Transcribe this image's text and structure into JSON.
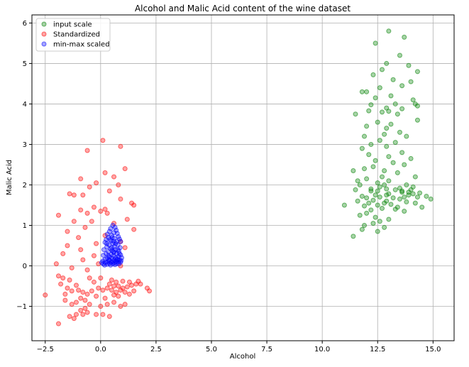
{
  "chart_data": {
    "type": "scatter",
    "title": "Alcohol and Malic Acid content of the wine dataset",
    "xlabel": "Alcohol",
    "ylabel": "Malic Acid",
    "xlim": [
      -3.1,
      15.95
    ],
    "ylim": [
      -1.85,
      6.2
    ],
    "xticks": [
      -2.5,
      0.0,
      2.5,
      5.0,
      7.5,
      10.0,
      12.5,
      15.0
    ],
    "xtick_labels": [
      "−2.5",
      "0.0",
      "2.5",
      "5.0",
      "7.5",
      "10.0",
      "12.5",
      "15.0"
    ],
    "yticks": [
      -1,
      0,
      1,
      2,
      3,
      4,
      5,
      6
    ],
    "ytick_labels": [
      "−1",
      "0",
      "1",
      "2",
      "3",
      "4",
      "5",
      "6"
    ],
    "grid": true,
    "legend_position": "top-left",
    "series": [
      {
        "name": "input scale",
        "color": "#008000",
        "points": [
          [
            13.0,
            5.8
          ],
          [
            13.7,
            5.65
          ],
          [
            12.4,
            5.5
          ],
          [
            13.5,
            5.2
          ],
          [
            12.9,
            5.0
          ],
          [
            13.9,
            4.95
          ],
          [
            12.7,
            4.85
          ],
          [
            14.3,
            4.8
          ],
          [
            12.3,
            4.72
          ],
          [
            13.2,
            4.6
          ],
          [
            14.0,
            4.55
          ],
          [
            13.6,
            4.45
          ],
          [
            12.6,
            4.4
          ],
          [
            11.8,
            4.3
          ],
          [
            12.0,
            4.3
          ],
          [
            13.1,
            4.2
          ],
          [
            12.4,
            4.15
          ],
          [
            14.1,
            4.1
          ],
          [
            14.2,
            4.0
          ],
          [
            13.3,
            4.0
          ],
          [
            12.2,
            3.98
          ],
          [
            14.3,
            3.95
          ],
          [
            11.5,
            3.75
          ],
          [
            12.9,
            3.9
          ],
          [
            13.6,
            3.88
          ],
          [
            12.1,
            3.83
          ],
          [
            12.7,
            3.8
          ],
          [
            13.0,
            3.82
          ],
          [
            13.4,
            3.75
          ],
          [
            14.3,
            3.6
          ],
          [
            12.5,
            3.55
          ],
          [
            13.1,
            3.5
          ],
          [
            12.0,
            3.45
          ],
          [
            12.9,
            3.4
          ],
          [
            13.5,
            3.3
          ],
          [
            13.8,
            3.2
          ],
          [
            12.8,
            3.25
          ],
          [
            11.9,
            3.2
          ],
          [
            12.6,
            3.1
          ],
          [
            13.3,
            3.05
          ],
          [
            12.2,
            3.0
          ],
          [
            12.9,
            2.95
          ],
          [
            11.8,
            2.9
          ],
          [
            13.6,
            2.8
          ],
          [
            12.1,
            2.75
          ],
          [
            13.0,
            2.7
          ],
          [
            14.0,
            2.65
          ],
          [
            12.4,
            2.6
          ],
          [
            13.2,
            2.55
          ],
          [
            13.7,
            2.5
          ],
          [
            12.3,
            2.45
          ],
          [
            11.9,
            2.4
          ],
          [
            12.8,
            2.35
          ],
          [
            11.4,
            2.35
          ],
          [
            13.4,
            2.3
          ],
          [
            14.2,
            2.2
          ],
          [
            12.7,
            2.2
          ],
          [
            12.0,
            2.15
          ],
          [
            13.0,
            2.1
          ],
          [
            11.6,
            2.1
          ],
          [
            11.7,
            2.0
          ],
          [
            12.5,
            2.05
          ],
          [
            13.8,
            2.0
          ],
          [
            14.1,
            1.95
          ],
          [
            12.9,
            1.9
          ],
          [
            13.3,
            1.88
          ],
          [
            11.5,
            1.88
          ],
          [
            12.2,
            1.85
          ],
          [
            13.6,
            1.82
          ],
          [
            14.4,
            1.8
          ],
          [
            13.0,
            1.78
          ],
          [
            12.4,
            1.75
          ],
          [
            13.9,
            1.75
          ],
          [
            11.8,
            1.72
          ],
          [
            14.7,
            1.72
          ],
          [
            12.6,
            1.7
          ],
          [
            13.2,
            1.68
          ],
          [
            12.0,
            1.68
          ],
          [
            14.9,
            1.65
          ],
          [
            13.5,
            1.65
          ],
          [
            12.3,
            1.62
          ],
          [
            11.6,
            1.6
          ],
          [
            13.8,
            1.58
          ],
          [
            12.8,
            1.55
          ],
          [
            14.2,
            1.55
          ],
          [
            13.1,
            1.52
          ],
          [
            12.5,
            1.5
          ],
          [
            11.9,
            1.48
          ],
          [
            14.5,
            1.45
          ],
          [
            13.4,
            1.45
          ],
          [
            12.7,
            1.42
          ],
          [
            11.0,
            1.5
          ],
          [
            12.2,
            1.38
          ],
          [
            13.7,
            1.35
          ],
          [
            12.0,
            1.3
          ],
          [
            11.7,
            1.25
          ],
          [
            12.4,
            1.2
          ],
          [
            13.0,
            1.15
          ],
          [
            12.6,
            1.1
          ],
          [
            12.3,
            1.05
          ],
          [
            11.9,
            1.0
          ],
          [
            12.8,
            0.95
          ],
          [
            11.8,
            0.9
          ],
          [
            12.5,
            0.85
          ],
          [
            11.4,
            0.73
          ],
          [
            13.6,
            1.85
          ],
          [
            13.9,
            1.82
          ],
          [
            14.1,
            1.78
          ],
          [
            13.7,
            1.7
          ],
          [
            14.3,
            1.7
          ],
          [
            12.1,
            1.55
          ],
          [
            12.9,
            1.6
          ],
          [
            13.3,
            1.4
          ],
          [
            12.2,
            1.9
          ],
          [
            12.6,
            1.95
          ],
          [
            13.5,
            1.92
          ],
          [
            14.0,
            1.88
          ],
          [
            12.8,
            2.0
          ],
          [
            12.5,
            1.85
          ],
          [
            12.9,
            1.75
          ]
        ]
      },
      {
        "name": "Standardized",
        "color": "#ff0000",
        "points": [
          [
            0.1,
            3.1
          ],
          [
            0.9,
            2.95
          ],
          [
            -0.6,
            2.85
          ],
          [
            1.1,
            2.4
          ],
          [
            0.2,
            2.3
          ],
          [
            0.6,
            2.2
          ],
          [
            -0.9,
            2.15
          ],
          [
            -0.2,
            2.05
          ],
          [
            0.8,
            2.0
          ],
          [
            -0.5,
            1.95
          ],
          [
            0.4,
            1.85
          ],
          [
            -1.4,
            1.78
          ],
          [
            -1.2,
            1.75
          ],
          [
            -0.8,
            1.75
          ],
          [
            0.9,
            1.65
          ],
          [
            1.4,
            1.55
          ],
          [
            1.5,
            1.5
          ],
          [
            -1.9,
            1.25
          ],
          [
            -0.3,
            1.45
          ],
          [
            0.2,
            1.4
          ],
          [
            -0.9,
            1.38
          ],
          [
            0.0,
            1.35
          ],
          [
            0.3,
            1.3
          ],
          [
            -0.6,
            1.3
          ],
          [
            1.2,
            1.15
          ],
          [
            -0.4,
            1.1
          ],
          [
            -1.2,
            1.1
          ],
          [
            0.6,
            1.05
          ],
          [
            -0.7,
            0.95
          ],
          [
            1.5,
            0.9
          ],
          [
            -1.5,
            0.85
          ],
          [
            0.2,
            0.75
          ],
          [
            -1.0,
            0.7
          ],
          [
            0.9,
            0.6
          ],
          [
            -1.5,
            0.5
          ],
          [
            -0.2,
            0.55
          ],
          [
            1.1,
            0.45
          ],
          [
            -0.9,
            0.4
          ],
          [
            -1.7,
            0.3
          ],
          [
            -0.3,
            0.25
          ],
          [
            -0.8,
            0.15
          ],
          [
            -2.0,
            0.05
          ],
          [
            -0.1,
            0.05
          ],
          [
            0.9,
            0.0
          ],
          [
            -1.3,
            -0.05
          ],
          [
            -0.6,
            -0.1
          ],
          [
            -1.9,
            -0.25
          ],
          [
            -1.7,
            -0.3
          ],
          [
            -0.5,
            -0.3
          ],
          [
            -1.4,
            -0.35
          ],
          [
            -1.8,
            -0.45
          ],
          [
            -1.1,
            -0.48
          ],
          [
            -0.3,
            -0.4
          ],
          [
            0.4,
            -0.45
          ],
          [
            0.6,
            -0.5
          ],
          [
            0.8,
            -0.5
          ],
          [
            1.0,
            -0.55
          ],
          [
            1.2,
            -0.52
          ],
          [
            1.4,
            -0.48
          ],
          [
            1.6,
            -0.45
          ],
          [
            1.7,
            -0.38
          ],
          [
            0.9,
            -0.6
          ],
          [
            0.7,
            -0.65
          ],
          [
            0.5,
            -0.6
          ],
          [
            0.3,
            -0.55
          ],
          [
            0.1,
            -0.6
          ],
          [
            -0.1,
            -0.55
          ],
          [
            1.1,
            -0.65
          ],
          [
            1.3,
            -0.7
          ],
          [
            1.5,
            -0.62
          ],
          [
            0.6,
            -0.72
          ],
          [
            0.8,
            -0.75
          ],
          [
            2.1,
            -0.55
          ],
          [
            2.2,
            -0.62
          ],
          [
            -2.5,
            -0.72
          ],
          [
            -1.6,
            -0.7
          ],
          [
            -1.3,
            -0.62
          ],
          [
            -1.0,
            -0.6
          ],
          [
            -0.8,
            -0.65
          ],
          [
            -0.6,
            -0.7
          ],
          [
            -0.4,
            -0.62
          ],
          [
            -0.9,
            -0.8
          ],
          [
            -0.7,
            -0.85
          ],
          [
            -1.1,
            -0.9
          ],
          [
            -1.3,
            -0.95
          ],
          [
            -0.5,
            -0.95
          ],
          [
            0.0,
            -1.0
          ],
          [
            0.3,
            -0.95
          ],
          [
            0.6,
            -0.9
          ],
          [
            0.9,
            -1.0
          ],
          [
            1.1,
            -0.95
          ],
          [
            -0.7,
            -1.05
          ],
          [
            -0.9,
            -1.1
          ],
          [
            -1.1,
            -1.2
          ],
          [
            -0.8,
            -1.2
          ],
          [
            -0.6,
            -1.15
          ],
          [
            -1.2,
            -1.3
          ],
          [
            -1.4,
            -1.25
          ],
          [
            0.1,
            -1.2
          ],
          [
            -0.2,
            -1.2
          ],
          [
            0.4,
            -1.25
          ],
          [
            -1.9,
            -1.43
          ],
          [
            0.0,
            -0.3
          ],
          [
            0.5,
            -0.35
          ],
          [
            1.3,
            -0.4
          ],
          [
            -0.2,
            -0.75
          ],
          [
            0.2,
            -0.8
          ],
          [
            1.8,
            -0.45
          ],
          [
            -1.5,
            -0.55
          ],
          [
            -1.6,
            -0.85
          ],
          [
            0.7,
            -0.4
          ],
          [
            1.0,
            -0.38
          ]
        ]
      },
      {
        "name": "min-max scaled",
        "color": "#0000ff",
        "points": [
          [
            0.55,
            1.0
          ],
          [
            0.65,
            0.95
          ],
          [
            0.45,
            0.92
          ],
          [
            0.7,
            0.88
          ],
          [
            0.4,
            0.85
          ],
          [
            0.6,
            0.82
          ],
          [
            0.75,
            0.8
          ],
          [
            0.3,
            0.78
          ],
          [
            0.5,
            0.75
          ],
          [
            0.8,
            0.72
          ],
          [
            0.35,
            0.7
          ],
          [
            0.62,
            0.68
          ],
          [
            0.85,
            0.66
          ],
          [
            0.25,
            0.65
          ],
          [
            0.48,
            0.62
          ],
          [
            0.72,
            0.6
          ],
          [
            0.9,
            0.6
          ],
          [
            0.2,
            0.58
          ],
          [
            0.55,
            0.55
          ],
          [
            0.38,
            0.52
          ],
          [
            0.78,
            0.52
          ],
          [
            0.62,
            0.48
          ],
          [
            0.28,
            0.47
          ],
          [
            0.88,
            0.45
          ],
          [
            0.45,
            0.42
          ],
          [
            0.68,
            0.4
          ],
          [
            0.15,
            0.4
          ],
          [
            0.52,
            0.38
          ],
          [
            0.82,
            0.36
          ],
          [
            0.35,
            0.35
          ],
          [
            0.6,
            0.33
          ],
          [
            0.72,
            0.3
          ],
          [
            0.25,
            0.3
          ],
          [
            0.48,
            0.28
          ],
          [
            0.9,
            0.27
          ],
          [
            0.12,
            0.26
          ],
          [
            0.58,
            0.25
          ],
          [
            0.8,
            0.23
          ],
          [
            0.4,
            0.22
          ],
          [
            0.68,
            0.2
          ],
          [
            0.3,
            0.19
          ],
          [
            0.95,
            0.2
          ],
          [
            0.52,
            0.18
          ],
          [
            0.75,
            0.17
          ],
          [
            0.2,
            0.16
          ],
          [
            0.62,
            0.15
          ],
          [
            0.85,
            0.14
          ],
          [
            0.4,
            0.13
          ],
          [
            0.1,
            0.12
          ],
          [
            0.55,
            0.12
          ],
          [
            0.7,
            0.11
          ],
          [
            0.32,
            0.1
          ],
          [
            0.8,
            0.1
          ],
          [
            0.48,
            0.09
          ],
          [
            0.62,
            0.08
          ],
          [
            0.22,
            0.08
          ],
          [
            0.9,
            0.09
          ],
          [
            0.4,
            0.06
          ],
          [
            0.72,
            0.06
          ],
          [
            0.55,
            0.05
          ],
          [
            0.3,
            0.04
          ],
          [
            0.82,
            0.05
          ],
          [
            0.12,
            0.05
          ],
          [
            0.65,
            0.03
          ],
          [
            0.45,
            0.02
          ],
          [
            0.18,
            0.02
          ],
          [
            0.75,
            0.15
          ],
          [
            0.35,
            0.25
          ],
          [
            0.58,
            0.35
          ],
          [
            0.68,
            0.55
          ],
          [
            0.42,
            0.65
          ],
          [
            0.5,
            0.45
          ],
          [
            0.28,
            0.55
          ],
          [
            0.85,
            0.3
          ],
          [
            0.6,
            0.6
          ],
          [
            0.38,
            0.15
          ],
          [
            0.92,
            0.13
          ],
          [
            0.05,
            0.08
          ],
          [
            0.52,
            0.7
          ],
          [
            0.78,
            0.4
          ]
        ]
      }
    ]
  }
}
